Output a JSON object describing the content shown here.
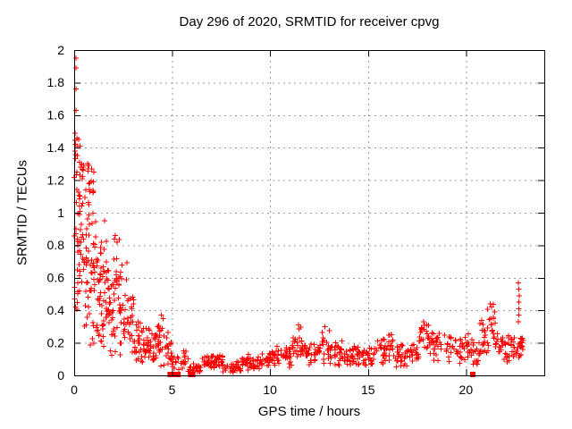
{
  "chart_data": {
    "type": "scatter",
    "title": "Day 296 of 2020, SRMTID for receiver cpvg",
    "xlabel": "GPS time / hours",
    "ylabel": "SRMTID / TECUs",
    "xlim": [
      0,
      24
    ],
    "ylim": [
      0,
      2
    ],
    "xticks": [
      0,
      5,
      10,
      15,
      20
    ],
    "yticks": [
      0,
      0.2,
      0.4,
      0.6,
      0.8,
      1,
      1.2,
      1.4,
      1.6,
      1.8,
      2
    ],
    "grid": true,
    "legend": "none",
    "marker": {
      "shape": "plus",
      "color": "#ff0000",
      "size": 7
    },
    "grid_color": "#9a9a9a",
    "border_color": "#000000",
    "background": "#ffffff",
    "seed": 20296,
    "outlier_points": [
      [
        0.08,
        1.95
      ],
      [
        0.1,
        1.89
      ],
      [
        0.1,
        1.76
      ],
      [
        0.09,
        1.63
      ],
      [
        0.05,
        1.49
      ],
      [
        0.13,
        1.46
      ],
      [
        0.22,
        1.45
      ],
      [
        0.07,
        1.42
      ],
      [
        0.18,
        1.41
      ],
      [
        0.3,
        1.41
      ],
      [
        0.05,
        1.38
      ],
      [
        0.28,
        1.31
      ],
      [
        0.38,
        1.3
      ],
      [
        0.33,
        1.28
      ],
      [
        0.45,
        1.26
      ],
      [
        0.3,
        1.23
      ],
      [
        0.42,
        1.21
      ],
      [
        0.75,
        1.29
      ],
      [
        0.9,
        1.27
      ],
      [
        1.0,
        1.25
      ],
      [
        0.97,
        1.19
      ],
      [
        0.6,
        1.14
      ],
      [
        0.8,
        1.13
      ],
      [
        1.4,
        0.82
      ],
      [
        1.55,
        0.95
      ],
      [
        2.1,
        0.86
      ],
      [
        2.18,
        0.82
      ],
      [
        4.45,
        0.37
      ],
      [
        4.55,
        0.35
      ],
      [
        5.6,
        0.15
      ],
      [
        5.65,
        0.12
      ],
      [
        11.45,
        0.31
      ],
      [
        12.8,
        0.3
      ],
      [
        17.85,
        0.33
      ],
      [
        18.0,
        0.31
      ],
      [
        21.25,
        0.44
      ],
      [
        21.3,
        0.42
      ],
      [
        22.68,
        0.57
      ],
      [
        22.7,
        0.53
      ],
      [
        22.72,
        0.49
      ],
      [
        22.69,
        0.45
      ],
      [
        22.71,
        0.41
      ],
      [
        22.7,
        0.37
      ],
      [
        22.68,
        0.33
      ],
      [
        22.85,
        0.2
      ],
      [
        22.9,
        0.16
      ]
    ],
    "zero_gap_squares": [
      4.9,
      5.15,
      5.3,
      5.95,
      6.05,
      20.35
    ],
    "density_bands": [
      [
        0.0,
        0.2,
        26,
        0.2,
        1.5
      ],
      [
        0.2,
        0.5,
        30,
        0.25,
        1.33
      ],
      [
        0.5,
        0.8,
        30,
        0.22,
        1.2
      ],
      [
        0.55,
        1.05,
        10,
        1.08,
        1.32
      ],
      [
        0.8,
        1.1,
        28,
        0.18,
        1.02
      ],
      [
        1.1,
        1.4,
        28,
        0.18,
        0.95
      ],
      [
        1.4,
        1.7,
        26,
        0.15,
        0.85
      ],
      [
        1.7,
        2.0,
        26,
        0.1,
        0.72
      ],
      [
        2.0,
        2.35,
        26,
        0.12,
        0.86
      ],
      [
        2.35,
        2.7,
        24,
        0.12,
        0.7
      ],
      [
        2.7,
        3.05,
        22,
        0.1,
        0.5
      ],
      [
        3.05,
        3.45,
        24,
        0.08,
        0.35
      ],
      [
        3.45,
        3.85,
        26,
        0.08,
        0.3
      ],
      [
        3.85,
        4.25,
        22,
        0.06,
        0.28
      ],
      [
        4.25,
        4.65,
        22,
        0.05,
        0.35
      ],
      [
        4.65,
        5.0,
        18,
        0.04,
        0.28
      ],
      [
        5.0,
        5.45,
        12,
        0.02,
        0.12
      ],
      [
        5.45,
        5.85,
        12,
        0.02,
        0.16
      ],
      [
        5.85,
        6.5,
        22,
        0.015,
        0.08
      ],
      [
        6.5,
        7.1,
        26,
        0.03,
        0.12
      ],
      [
        7.1,
        7.6,
        24,
        0.04,
        0.13
      ],
      [
        7.6,
        8.5,
        34,
        0.015,
        0.09
      ],
      [
        8.5,
        9.5,
        40,
        0.03,
        0.13
      ],
      [
        9.5,
        10.3,
        36,
        0.05,
        0.15
      ],
      [
        10.3,
        11.1,
        36,
        0.05,
        0.18
      ],
      [
        11.1,
        11.4,
        14,
        0.08,
        0.24
      ],
      [
        11.4,
        11.65,
        12,
        0.1,
        0.3
      ],
      [
        11.65,
        12.45,
        34,
        0.06,
        0.2
      ],
      [
        12.45,
        13.1,
        28,
        0.07,
        0.29
      ],
      [
        13.1,
        13.7,
        26,
        0.06,
        0.22
      ],
      [
        13.7,
        14.5,
        34,
        0.05,
        0.18
      ],
      [
        14.5,
        15.3,
        34,
        0.05,
        0.18
      ],
      [
        15.3,
        15.9,
        24,
        0.06,
        0.23
      ],
      [
        15.9,
        16.3,
        16,
        0.07,
        0.26
      ],
      [
        16.3,
        17.1,
        30,
        0.05,
        0.19
      ],
      [
        17.1,
        17.6,
        22,
        0.06,
        0.2
      ],
      [
        17.6,
        18.15,
        22,
        0.08,
        0.33
      ],
      [
        18.15,
        19.0,
        30,
        0.09,
        0.28
      ],
      [
        19.0,
        19.65,
        24,
        0.08,
        0.26
      ],
      [
        19.65,
        20.25,
        24,
        0.07,
        0.27
      ],
      [
        20.25,
        20.7,
        20,
        0.06,
        0.23
      ],
      [
        20.7,
        21.1,
        18,
        0.1,
        0.38
      ],
      [
        21.1,
        21.5,
        18,
        0.12,
        0.45
      ],
      [
        21.5,
        22.05,
        22,
        0.07,
        0.28
      ],
      [
        22.05,
        22.55,
        22,
        0.08,
        0.25
      ],
      [
        22.55,
        22.95,
        20,
        0.09,
        0.24
      ]
    ]
  }
}
